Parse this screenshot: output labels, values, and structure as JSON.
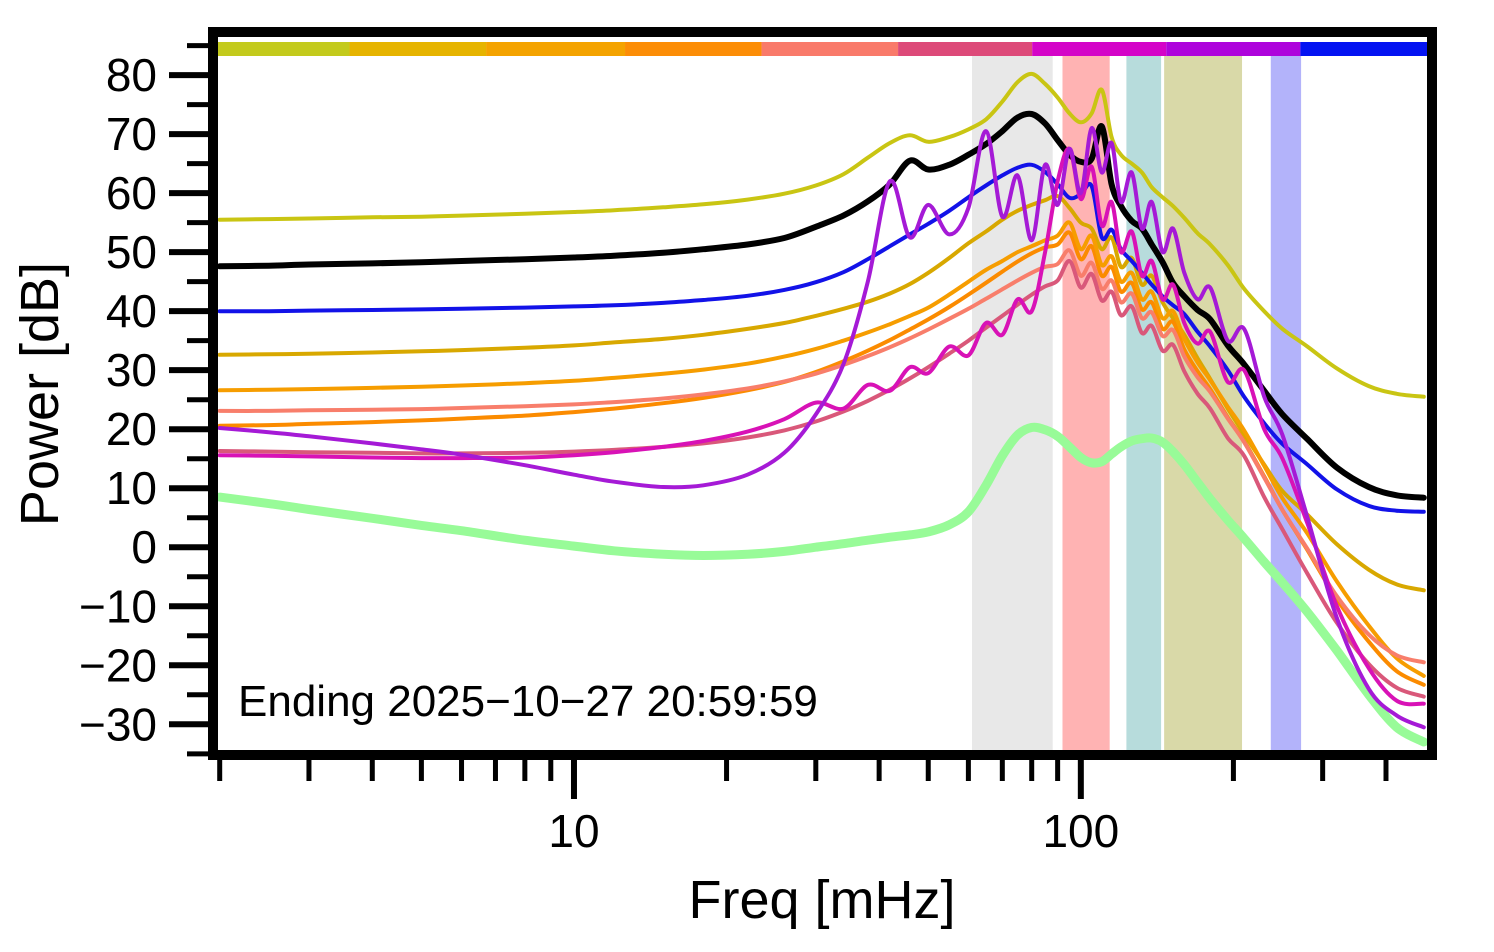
{
  "annotation": {
    "text": "Ending 2025−10−27 20:59:59"
  },
  "axes": {
    "x_label": "Freq [mHz]",
    "y_label": "Power [dB]",
    "x_log_range_mhz": [
      1.94,
      493
    ],
    "y_range_db": [
      -35.2,
      87.3
    ],
    "x_major_ticks": [
      {
        "value": 10,
        "label": "10"
      },
      {
        "value": 100,
        "label": "100"
      }
    ],
    "x_minor_ticks": [
      2,
      3,
      4,
      5,
      6,
      7,
      8,
      9,
      20,
      30,
      40,
      50,
      60,
      70,
      80,
      90,
      200,
      300,
      400
    ],
    "y_major_ticks": [
      {
        "value": 80,
        "label": "80"
      },
      {
        "value": 70,
        "label": "70"
      },
      {
        "value": 60,
        "label": "60"
      },
      {
        "value": 50,
        "label": "50"
      },
      {
        "value": 40,
        "label": "40"
      },
      {
        "value": 30,
        "label": "30"
      },
      {
        "value": 20,
        "label": "20"
      },
      {
        "value": 10,
        "label": "10"
      },
      {
        "value": 0,
        "label": "0"
      },
      {
        "value": -10,
        "label": "−10"
      },
      {
        "value": -20,
        "label": "−20"
      },
      {
        "value": -30,
        "label": "−30"
      }
    ],
    "y_minor_ticks": [
      85,
      75,
      65,
      55,
      45,
      35,
      25,
      15,
      5,
      -5,
      -15,
      -25,
      -35
    ]
  },
  "time_colorbar": {
    "description": "hour-of-day color strip along top of plot",
    "segment_colors": [
      "#c3ca1c",
      "#e6b400",
      "#f4a300",
      "#fc8d06",
      "#f97a6a",
      "#dd4a79",
      "#d404c8",
      "#ae04dc",
      "#0413f2"
    ],
    "segment_boundaries_fraction": [
      0,
      0.112,
      0.224,
      0.338,
      0.45,
      0.562,
      0.672,
      0.782,
      0.892,
      1
    ]
  },
  "frequency_bands": [
    {
      "name": "band-gray",
      "color": "#e8e8e8",
      "from_mhz": 61,
      "to_mhz": 88
    },
    {
      "name": "band-pink",
      "color": "#ffb3b3",
      "from_mhz": 92,
      "to_mhz": 114
    },
    {
      "name": "band-teal",
      "color": "#b7dcdc",
      "from_mhz": 123,
      "to_mhz": 144
    },
    {
      "name": "band-olive",
      "color": "#d9d9a8",
      "from_mhz": 146,
      "to_mhz": 208
    },
    {
      "name": "band-lavender",
      "color": "#b3b3fa",
      "from_mhz": 237,
      "to_mhz": 272
    }
  ],
  "chart_data": {
    "type": "line",
    "title": "",
    "xlabel": "Freq [mHz]",
    "ylabel": "Power [dB]",
    "x_scale": "log",
    "xlim": [
      1.94,
      493
    ],
    "ylim": [
      -35.2,
      87.3
    ],
    "grid": false,
    "legend": "none",
    "x": [
      2,
      2.5,
      3,
      4,
      5,
      6,
      8,
      10,
      12,
      15,
      18,
      22,
      26,
      30,
      34,
      38,
      42,
      46,
      50,
      55,
      60,
      65,
      70,
      75,
      80,
      85,
      90,
      95,
      100,
      105,
      110,
      115,
      120,
      126,
      132,
      138,
      145,
      152,
      160,
      170,
      180,
      195,
      210,
      230,
      250,
      280,
      320,
      370,
      420,
      475
    ],
    "series": [
      {
        "name": "pale-green-reference",
        "color": "#98fb98",
        "width": 9,
        "values": [
          8.5,
          7.4,
          6.4,
          4.9,
          3.7,
          2.8,
          1.2,
          0.2,
          -0.6,
          -1.2,
          -1.4,
          -1.2,
          -0.7,
          0,
          0.6,
          1.2,
          1.7,
          2.1,
          2.6,
          3.8,
          6,
          10.5,
          15.5,
          19,
          20.3,
          19.9,
          18.8,
          17,
          15.2,
          14.3,
          14.5,
          15.8,
          17,
          18,
          18.4,
          18.5,
          17.8,
          16.2,
          14,
          11,
          8.2,
          4.6,
          1.5,
          -2.5,
          -6,
          -11,
          -17.5,
          -25,
          -30.5,
          -33
        ]
      },
      {
        "name": "yellow-interval",
        "color": "#c9c513",
        "width": 4,
        "values": [
          55.5,
          55.6,
          55.7,
          55.9,
          56,
          56.2,
          56.5,
          56.8,
          57.1,
          57.6,
          58.1,
          58.9,
          59.9,
          61.3,
          63.2,
          66,
          68.5,
          69.8,
          68.7,
          69.5,
          70.8,
          72.5,
          75.5,
          78.8,
          80.2,
          78.5,
          76.2,
          73.5,
          72,
          73.5,
          77.5,
          69.5,
          66.5,
          65,
          63.5,
          61,
          59.3,
          57.8,
          55.8,
          53.2,
          51.3,
          47.8,
          43.8,
          40,
          37,
          34,
          30.3,
          27.3,
          26,
          25.5
        ]
      },
      {
        "name": "gold-interval",
        "color": "#d8a800",
        "width": 4,
        "values": [
          32.6,
          32.7,
          32.8,
          33,
          33.2,
          33.4,
          33.8,
          34.2,
          34.7,
          35.3,
          36,
          37,
          38,
          39.2,
          40.4,
          41.6,
          43,
          44.6,
          46.5,
          49,
          51.5,
          53.5,
          55.5,
          57,
          58,
          58.8,
          59.5,
          57.5,
          55,
          54,
          50.5,
          52.5,
          47.5,
          49,
          44.5,
          46,
          41.5,
          38.8,
          36,
          32,
          28.5,
          23.5,
          19.2,
          14,
          9.5,
          5.5,
          0.5,
          -3.8,
          -6.3,
          -7.3
        ]
      },
      {
        "name": "dark-orange-interval",
        "color": "#fb8b00",
        "width": 4,
        "values": [
          20.6,
          20.7,
          20.9,
          21.2,
          21.5,
          21.8,
          22.3,
          22.9,
          23.5,
          24.4,
          25.3,
          26.6,
          28,
          29.7,
          31.5,
          33.3,
          35.1,
          36.9,
          38.6,
          40.7,
          42.8,
          44.8,
          46.7,
          48.4,
          49.8,
          50.8,
          51.3,
          53.3,
          48.8,
          51,
          46,
          47.5,
          43.3,
          44.8,
          40.3,
          41.5,
          37,
          38.2,
          33.5,
          29.8,
          26.8,
          22,
          18,
          12,
          6.3,
          -0.5,
          -8.8,
          -16,
          -21,
          -23.3
        ]
      },
      {
        "name": "orange-interval",
        "color": "#f69d00",
        "width": 4,
        "values": [
          26.6,
          26.7,
          26.8,
          27,
          27.2,
          27.4,
          27.8,
          28.2,
          28.7,
          29.4,
          30.1,
          31.1,
          32.3,
          33.6,
          35,
          36.4,
          37.8,
          39.2,
          40.6,
          42.8,
          45,
          47,
          48.5,
          50,
          51,
          52,
          52.8,
          55,
          50.5,
          52.8,
          47.8,
          49.3,
          45,
          46.5,
          42,
          43.3,
          38.8,
          40,
          35.3,
          31.3,
          28.3,
          23.8,
          19.8,
          13.8,
          8.3,
          2.3,
          -5.8,
          -13.3,
          -18.8,
          -21.8
        ]
      },
      {
        "name": "salmon-interval",
        "color": "#f87e6b",
        "width": 4,
        "values": [
          23.1,
          23.1,
          23.2,
          23.3,
          23.4,
          23.6,
          23.9,
          24.2,
          24.6,
          25.2,
          25.9,
          26.9,
          28.1,
          29.4,
          30.9,
          32.4,
          33.9,
          35.4,
          36.9,
          38.7,
          40.4,
          42.1,
          43.7,
          45.2,
          46.5,
          47.5,
          48,
          50.3,
          46,
          48.2,
          43.8,
          45.2,
          41.5,
          43,
          38.8,
          39.8,
          35.8,
          36.8,
          32.3,
          28.8,
          26.3,
          21.8,
          17.8,
          11.8,
          6.3,
          -0.3,
          -8.3,
          -14.8,
          -18.3,
          -19.5
        ]
      },
      {
        "name": "rose-interval",
        "color": "#d9587a",
        "width": 4,
        "values": [
          16.3,
          16.2,
          16.1,
          16,
          15.9,
          15.9,
          16,
          16.2,
          16.5,
          17,
          17.6,
          18.6,
          19.8,
          21.3,
          23,
          24.8,
          26.7,
          28.6,
          30.5,
          32.8,
          35,
          37.2,
          39.2,
          41.1,
          42.8,
          44.2,
          45.2,
          48.5,
          44,
          46.3,
          41.8,
          43.3,
          39.3,
          40.8,
          36.3,
          37.5,
          33.3,
          34.3,
          29.8,
          26,
          23.5,
          18.5,
          15.5,
          8.5,
          3,
          -4.5,
          -12.8,
          -19.8,
          -23.8,
          -25.3
        ]
      },
      {
        "name": "blue-interval",
        "color": "#1212e8",
        "width": 4,
        "values": [
          40,
          40,
          40.1,
          40.2,
          40.3,
          40.4,
          40.6,
          40.8,
          41,
          41.4,
          41.9,
          42.6,
          43.6,
          44.9,
          46.6,
          48.8,
          51,
          53,
          54.8,
          57,
          59.3,
          61.3,
          63,
          64.3,
          64.8,
          63.6,
          61.5,
          59.2,
          59.8,
          61.2,
          52.5,
          53.8,
          50.5,
          48.5,
          46.5,
          44.5,
          42.5,
          41,
          39.5,
          36.5,
          34,
          30,
          25.5,
          21,
          17.5,
          14,
          9.8,
          7,
          6.2,
          6
        ]
      },
      {
        "name": "current-black",
        "color": "#000000",
        "width": 6,
        "values": [
          47.6,
          47.7,
          47.9,
          48.1,
          48.3,
          48.5,
          48.8,
          49.1,
          49.4,
          49.9,
          50.5,
          51.3,
          52.4,
          54.3,
          56.2,
          58.6,
          61.5,
          65.5,
          64,
          64.8,
          66.5,
          68.3,
          70.5,
          72.8,
          73.4,
          71.8,
          69,
          66.5,
          65.3,
          65.8,
          71.3,
          61.5,
          57.8,
          55.3,
          54,
          51.3,
          48.3,
          44.8,
          42.5,
          40.2,
          38.6,
          34.2,
          31,
          26.5,
          22.5,
          18.3,
          13.5,
          10.2,
          8.8,
          8.4
        ]
      },
      {
        "name": "magenta-interval",
        "color": "#d812b6",
        "width": 4,
        "values": [
          15.6,
          15.5,
          15.4,
          15.2,
          15.1,
          15.1,
          15.2,
          15.6,
          16.1,
          17,
          18,
          19.6,
          21.7,
          24.5,
          23.5,
          27.5,
          26.5,
          30.5,
          29.5,
          34,
          32.5,
          38,
          36,
          42,
          40,
          50,
          62,
          67.5,
          59,
          64.5,
          54.5,
          58.5,
          50,
          53.5,
          46,
          48.5,
          42,
          44.5,
          38,
          34.5,
          36.5,
          28,
          30,
          20,
          15,
          4,
          -10,
          -20.5,
          -26,
          -26.5
        ]
      },
      {
        "name": "purple-interval",
        "color": "#a51ad6",
        "width": 4,
        "values": [
          20.2,
          19.5,
          18.8,
          17.6,
          16.6,
          15.7,
          13.9,
          12.3,
          11.1,
          10.2,
          10.5,
          12.3,
          16,
          22.5,
          31,
          45,
          62,
          52.5,
          58,
          53,
          57.5,
          70.5,
          56,
          63,
          52,
          64.8,
          58,
          67.5,
          60,
          71,
          63.5,
          68.5,
          58.5,
          63.5,
          54,
          58.5,
          50,
          54,
          46.5,
          42,
          44,
          35,
          37,
          25.5,
          19,
          5,
          -12,
          -24,
          -28.5,
          -30.5
        ]
      }
    ]
  }
}
